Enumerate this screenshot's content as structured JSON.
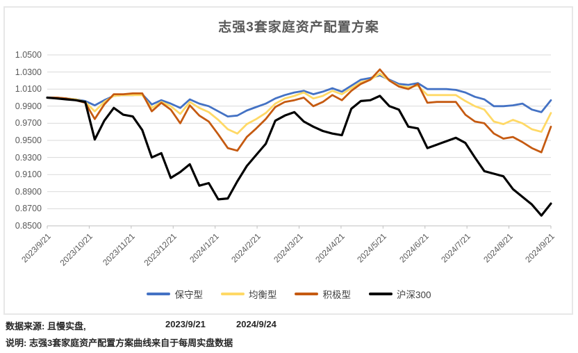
{
  "chart": {
    "title": "志强3套家庭资产配置方案",
    "y_ticks": [
      "1.0500",
      "1.0300",
      "1.0100",
      "0.9900",
      "0.9700",
      "0.9500",
      "0.9300",
      "0.9100",
      "0.8900",
      "0.8700",
      "0.8500"
    ],
    "x_ticks": [
      "2023/9/21",
      "2023/10/21",
      "2023/11/21",
      "2023/12/21",
      "2024/1/21",
      "2024/2/21",
      "2024/3/21",
      "2024/4/21",
      "2024/5/21",
      "2024/6/21",
      "2024/7/21",
      "2024/8/21",
      "2024/9/21"
    ],
    "legend": [
      {
        "label": "保守型",
        "color": "#4472C4"
      },
      {
        "label": "均衡型",
        "color": "#FFD966"
      },
      {
        "label": "积极型",
        "color": "#C55A11"
      },
      {
        "label": "沪深300",
        "color": "#000000"
      }
    ],
    "colors": {
      "grid": "#D9D9D9",
      "axis": "#BFBFBF",
      "title_text": "#595959",
      "tick_text": "#595959"
    }
  },
  "chart_data": {
    "type": "line",
    "title": "志强3套家庭资产配置方案",
    "xlabel": "",
    "ylabel": "",
    "ylim": [
      0.85,
      1.05
    ],
    "grid": true,
    "legend_position": "bottom",
    "x": [
      "2023/9/21",
      "2023/9/28",
      "2023/10/5",
      "2023/10/12",
      "2023/10/19",
      "2023/10/26",
      "2023/11/2",
      "2023/11/9",
      "2023/11/16",
      "2023/11/23",
      "2023/11/30",
      "2023/12/7",
      "2023/12/14",
      "2023/12/21",
      "2023/12/28",
      "2024/1/4",
      "2024/1/11",
      "2024/1/18",
      "2024/1/25",
      "2024/2/1",
      "2024/2/8",
      "2024/2/15",
      "2024/2/22",
      "2024/2/29",
      "2024/3/7",
      "2024/3/14",
      "2024/3/21",
      "2024/3/28",
      "2024/4/4",
      "2024/4/11",
      "2024/4/18",
      "2024/4/25",
      "2024/5/2",
      "2024/5/9",
      "2024/5/16",
      "2024/5/23",
      "2024/5/30",
      "2024/6/6",
      "2024/6/13",
      "2024/6/20",
      "2024/6/27",
      "2024/7/4",
      "2024/7/11",
      "2024/7/18",
      "2024/7/25",
      "2024/8/1",
      "2024/8/8",
      "2024/8/15",
      "2024/8/22",
      "2024/8/29",
      "2024/9/5",
      "2024/9/12",
      "2024/9/19",
      "2024/9/24"
    ],
    "series": [
      {
        "name": "保守型",
        "color": "#4472C4",
        "width": 2.8,
        "values": [
          1.0,
          1.0,
          0.999,
          0.998,
          0.996,
          0.991,
          0.997,
          1.002,
          1.003,
          1.003,
          1.004,
          0.992,
          0.997,
          0.993,
          0.988,
          0.998,
          0.993,
          0.99,
          0.984,
          0.978,
          0.979,
          0.985,
          0.989,
          0.993,
          0.999,
          1.003,
          1.006,
          1.008,
          1.004,
          1.007,
          1.011,
          1.007,
          1.014,
          1.021,
          1.023,
          1.026,
          1.021,
          1.016,
          1.015,
          1.017,
          1.01,
          1.01,
          1.01,
          1.009,
          1.006,
          1.001,
          0.998,
          0.99,
          0.99,
          0.991,
          0.993,
          0.986,
          0.983,
          0.997
        ]
      },
      {
        "name": "均衡型",
        "color": "#FFD966",
        "width": 2.8,
        "values": [
          1.0,
          1.0,
          0.999,
          0.998,
          0.995,
          0.984,
          0.995,
          1.002,
          1.003,
          1.003,
          1.003,
          0.988,
          0.995,
          0.99,
          0.981,
          0.995,
          0.988,
          0.983,
          0.974,
          0.963,
          0.958,
          0.969,
          0.975,
          0.982,
          0.993,
          0.999,
          1.002,
          1.006,
          0.999,
          1.002,
          1.008,
          1.004,
          1.011,
          1.018,
          1.021,
          1.028,
          1.02,
          1.014,
          1.012,
          1.014,
          1.003,
          1.003,
          1.003,
          1.003,
          0.996,
          0.99,
          0.986,
          0.972,
          0.969,
          0.974,
          0.97,
          0.963,
          0.96,
          0.982
        ]
      },
      {
        "name": "积极型",
        "color": "#C55A11",
        "width": 2.8,
        "values": [
          1.0,
          1.0,
          0.999,
          0.997,
          0.994,
          0.975,
          0.992,
          1.004,
          1.004,
          1.005,
          1.005,
          0.984,
          0.994,
          0.986,
          0.97,
          0.991,
          0.979,
          0.972,
          0.957,
          0.941,
          0.938,
          0.954,
          0.964,
          0.975,
          0.989,
          0.995,
          0.997,
          1.0,
          0.99,
          0.995,
          1.003,
          0.997,
          1.008,
          1.016,
          1.021,
          1.033,
          1.02,
          1.013,
          1.01,
          1.016,
          0.994,
          0.995,
          0.995,
          0.995,
          0.98,
          0.972,
          0.97,
          0.958,
          0.952,
          0.954,
          0.948,
          0.941,
          0.936,
          0.966
        ]
      },
      {
        "name": "沪深300",
        "color": "#000000",
        "width": 3.2,
        "values": [
          1.0,
          0.999,
          0.998,
          0.997,
          0.995,
          0.951,
          0.973,
          0.988,
          0.98,
          0.978,
          0.962,
          0.93,
          0.935,
          0.906,
          0.913,
          0.922,
          0.897,
          0.9,
          0.881,
          0.882,
          0.902,
          0.92,
          0.933,
          0.946,
          0.973,
          0.979,
          0.983,
          0.972,
          0.966,
          0.961,
          0.958,
          0.956,
          0.987,
          0.996,
          0.997,
          1.002,
          0.99,
          0.986,
          0.966,
          0.964,
          0.941,
          0.945,
          0.949,
          0.953,
          0.947,
          0.93,
          0.914,
          0.911,
          0.908,
          0.893,
          0.884,
          0.875,
          0.862,
          0.876
        ]
      }
    ]
  },
  "footer": {
    "source_label": "数据来源: 且慢实盘,",
    "date_start": "2023/9/21",
    "date_end": "2024/9/24",
    "note": "说明: 志强3套家庭资产配置方案曲线来自于每周实盘数据"
  }
}
